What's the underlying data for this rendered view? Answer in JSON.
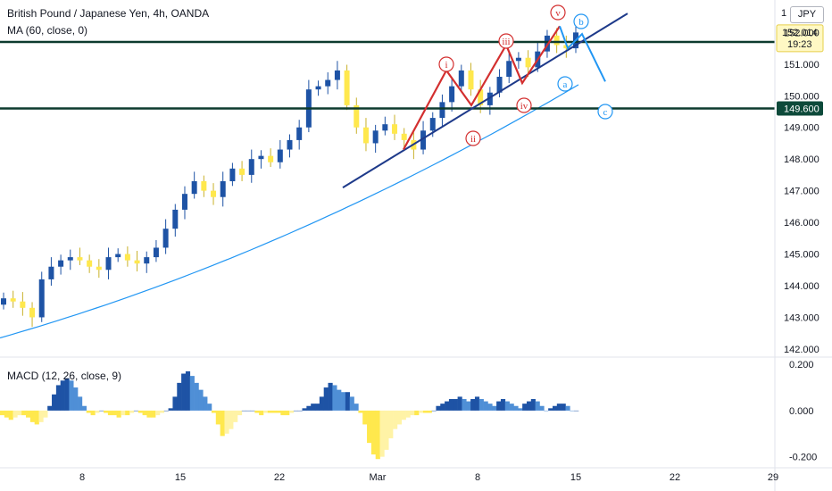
{
  "header": {
    "symbol_line": "British Pound / Japanese Yen, 4h, OANDA",
    "ma_line": "MA (60, close, 0)",
    "macd_line": "MACD (12, 26, close, 9)",
    "scale_label": "JPY",
    "scale_one": "1"
  },
  "colors": {
    "up": "#1e53a5",
    "down": "#ffe84d",
    "ma": "#2196f3",
    "level": "#0d3b2e",
    "wave_red": "#d32f2f",
    "wave_blue": "#2196f3",
    "trend": "#1e3a8a",
    "price_badge": "#0d4a3a"
  },
  "price_axis": {
    "ticks": [
      "152.000",
      "151.000",
      "150.000",
      "149.000",
      "148.000",
      "147.000",
      "146.000",
      "145.000",
      "144.000",
      "143.000",
      "142.000"
    ],
    "current_price": "152.014",
    "countdown": "19:23",
    "levels": [
      {
        "value": 151.7,
        "label": "151.700"
      },
      {
        "value": 149.6,
        "label": "149.600"
      }
    ]
  },
  "macd_axis": {
    "ticks": [
      "0.200",
      "0.000",
      "-0.200"
    ]
  },
  "time_axis": {
    "ticks": [
      "8",
      "15",
      "22",
      "Mar",
      "8",
      "15",
      "22",
      "29"
    ]
  },
  "wave_labels": {
    "red": [
      "i",
      "ii",
      "iii",
      "iv",
      "v"
    ],
    "blue": [
      "a",
      "b",
      "c"
    ]
  },
  "chart_data": {
    "type": "candlestick",
    "timeframe": "4h",
    "x_tick_labels": [
      "8",
      "15",
      "22",
      "Mar",
      "8",
      "15",
      "22",
      "29"
    ],
    "y_range": [
      141.8,
      152.8
    ],
    "horizontal_levels": [
      151.7,
      149.6
    ],
    "moving_average": {
      "name": "MA (60, close, 0)",
      "start": 142.35,
      "end": 150.35
    },
    "close_path": [
      143.6,
      143.5,
      143.3,
      143.0,
      144.2,
      144.6,
      144.8,
      144.9,
      144.8,
      144.6,
      144.5,
      144.9,
      145.0,
      144.8,
      144.7,
      144.9,
      145.2,
      145.8,
      146.4,
      146.9,
      147.3,
      147.0,
      146.8,
      147.3,
      147.7,
      147.5,
      148.0,
      148.1,
      147.9,
      148.3,
      148.6,
      149.0,
      150.2,
      150.3,
      150.5,
      150.8,
      149.7,
      149.0,
      148.5,
      148.9,
      149.1,
      148.8,
      148.6,
      148.3,
      148.9,
      149.3,
      149.8,
      150.3,
      150.8,
      150.2,
      149.7,
      150.1,
      150.6,
      151.1,
      151.2,
      150.9,
      151.4,
      151.9,
      151.6,
      151.5,
      152.0
    ],
    "wave_points": {
      "i": 150.8,
      "ii": 149.7,
      "iii": 151.6,
      "iv": 150.4,
      "v": 152.2,
      "a": 151.5,
      "b": 151.95,
      "c": 150.45
    },
    "trendline": {
      "start": 147.1,
      "end": 152.6
    },
    "macd": {
      "y_range": [
        -0.24,
        0.22
      ],
      "values": [
        -0.02,
        -0.03,
        -0.04,
        -0.03,
        -0.02,
        -0.02,
        -0.03,
        -0.05,
        -0.06,
        -0.05,
        -0.03,
        0.02,
        0.07,
        0.11,
        0.13,
        0.14,
        0.13,
        0.1,
        0.06,
        0.02,
        -0.01,
        -0.02,
        -0.01,
        0.0,
        -0.01,
        -0.02,
        -0.02,
        -0.03,
        -0.02,
        -0.02,
        -0.01,
        0.0,
        -0.01,
        -0.02,
        -0.03,
        -0.03,
        -0.02,
        -0.01,
        0.0,
        0.01,
        0.06,
        0.12,
        0.16,
        0.17,
        0.15,
        0.12,
        0.09,
        0.06,
        0.03,
        -0.01,
        -0.06,
        -0.11,
        -0.1,
        -0.08,
        -0.05,
        -0.02,
        0.0,
        0.0,
        0.0,
        -0.01,
        -0.02,
        -0.01,
        -0.01,
        -0.01,
        -0.01,
        -0.02,
        -0.02,
        -0.01,
        0.0,
        0.0,
        0.01,
        0.02,
        0.03,
        0.03,
        0.06,
        0.1,
        0.12,
        0.11,
        0.09,
        0.08,
        0.08,
        0.06,
        0.03,
        -0.01,
        -0.06,
        -0.14,
        -0.19,
        -0.21,
        -0.2,
        -0.17,
        -0.12,
        -0.08,
        -0.06,
        -0.04,
        -0.03,
        -0.02,
        -0.02,
        -0.01,
        -0.01,
        -0.01,
        0.0,
        0.02,
        0.03,
        0.04,
        0.05,
        0.05,
        0.06,
        0.05,
        0.04,
        0.05,
        0.06,
        0.05,
        0.04,
        0.03,
        0.02,
        0.04,
        0.05,
        0.04,
        0.03,
        0.02,
        0.01,
        0.03,
        0.04,
        0.05,
        0.04,
        0.02,
        0.0,
        0.01,
        0.02,
        0.03,
        0.03,
        0.02,
        0.0,
        0.0
      ]
    }
  }
}
